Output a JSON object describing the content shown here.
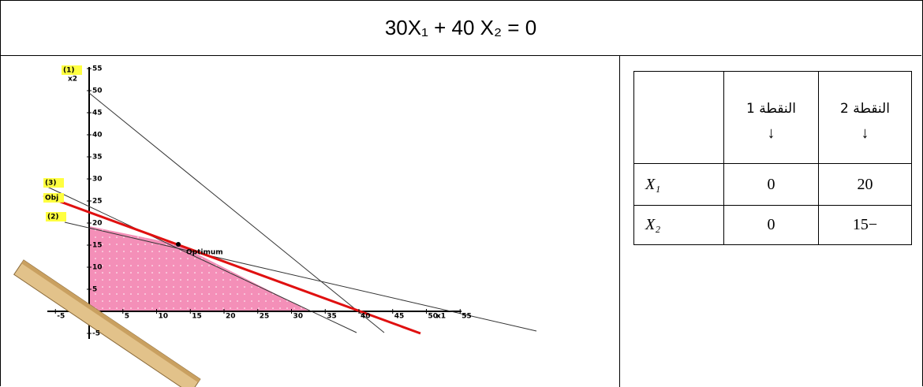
{
  "header": {
    "title": "30X₁ + 40 X₂ = 0"
  },
  "graph": {
    "x_ticks": [
      -5,
      5,
      10,
      15,
      20,
      25,
      30,
      35,
      40,
      45,
      50,
      55
    ],
    "y_ticks": [
      -5,
      5,
      10,
      15,
      20,
      25,
      30,
      35,
      40,
      45,
      50,
      55
    ],
    "x_axis_label": "x1",
    "y_axis_label": "x2",
    "line_labels": [
      "(1)",
      "(3)",
      "Obj",
      "(2)"
    ],
    "annotation": "Optimum"
  },
  "table": {
    "columns": [
      "النقطة 1",
      "النقطة 2"
    ],
    "arrow": "↓",
    "rows": [
      {
        "label": "X₁",
        "values": [
          "0",
          "20"
        ]
      },
      {
        "label": "X₂",
        "values": [
          "0",
          "15−"
        ]
      }
    ]
  }
}
